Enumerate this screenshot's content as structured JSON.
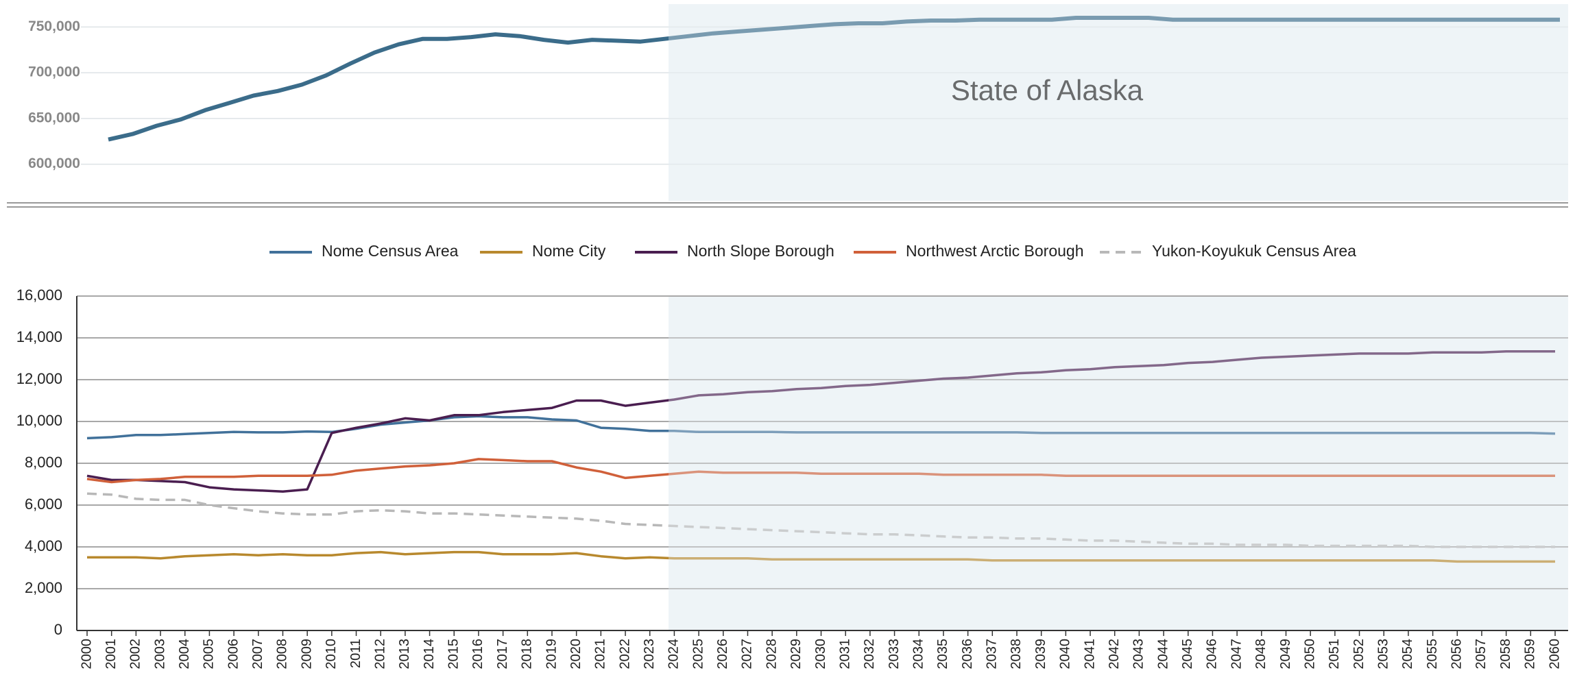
{
  "chart_data": [
    {
      "type": "line",
      "annotation": "State of Alaska",
      "series": [
        {
          "color": "#3b6c8a",
          "values": [
            627000,
            633000,
            642000,
            649000,
            659000,
            667000,
            675000,
            680000,
            687000,
            697000,
            710000,
            722000,
            731000,
            737000,
            737000,
            739000,
            742000,
            740000,
            736000,
            733000,
            736000,
            735000,
            734000,
            737000,
            740000,
            743000,
            745000,
            747000,
            749000,
            751000,
            753000,
            754000,
            754000,
            756000,
            757000,
            757000,
            758000,
            758000,
            758000,
            758000,
            760000,
            760000,
            760000,
            760000,
            758000,
            758000,
            758000,
            758000,
            758000,
            758000,
            758000,
            758000,
            758000,
            758000,
            758000,
            758000,
            758000,
            758000,
            758000,
            758000,
            758000
          ]
        }
      ],
      "ylim": [
        560000,
        775000
      ],
      "yticks": [
        {
          "value": 600000,
          "label": "600,000"
        },
        {
          "value": 650000,
          "label": "650,000"
        },
        {
          "value": 700000,
          "label": "700,000"
        },
        {
          "value": 750000,
          "label": "750,000"
        }
      ],
      "grid": true
    },
    {
      "type": "line",
      "categories": [
        "2000",
        "2001",
        "2002",
        "2003",
        "2004",
        "2005",
        "2006",
        "2007",
        "2008",
        "2009",
        "2010",
        "2011",
        "2012",
        "2013",
        "2014",
        "2015",
        "2016",
        "2017",
        "2018",
        "2019",
        "2020",
        "2021",
        "2022",
        "2023",
        "2024",
        "2025",
        "2026",
        "2027",
        "2028",
        "2029",
        "2030",
        "2031",
        "2032",
        "2033",
        "2034",
        "2035",
        "2036",
        "2037",
        "2038",
        "2039",
        "2040",
        "2041",
        "2042",
        "2043",
        "2044",
        "2045",
        "2046",
        "2047",
        "2048",
        "2049",
        "2050",
        "2051",
        "2052",
        "2053",
        "2054",
        "2055",
        "2056",
        "2057",
        "2058",
        "2059",
        "2060"
      ],
      "series": [
        {
          "name": "Nome Census Area",
          "color": "#41719a",
          "values": [
            9200,
            9250,
            9350,
            9350,
            9400,
            9450,
            9500,
            9480,
            9480,
            9520,
            9500,
            9650,
            9850,
            9950,
            10050,
            10200,
            10250,
            10200,
            10200,
            10100,
            10050,
            9700,
            9650,
            9550,
            9550,
            9500,
            9500,
            9500,
            9500,
            9480,
            9480,
            9480,
            9480,
            9480,
            9480,
            9480,
            9480,
            9480,
            9480,
            9450,
            9450,
            9450,
            9450,
            9450,
            9450,
            9450,
            9450,
            9450,
            9450,
            9450,
            9450,
            9450,
            9450,
            9450,
            9450,
            9450,
            9450,
            9450,
            9450,
            9450,
            9420
          ]
        },
        {
          "name": "Nome City",
          "color": "#b8892e",
          "values": [
            3500,
            3500,
            3500,
            3450,
            3550,
            3600,
            3650,
            3600,
            3650,
            3600,
            3600,
            3700,
            3750,
            3650,
            3700,
            3750,
            3750,
            3650,
            3650,
            3650,
            3700,
            3550,
            3450,
            3500,
            3450,
            3450,
            3450,
            3450,
            3400,
            3400,
            3400,
            3400,
            3400,
            3400,
            3400,
            3400,
            3400,
            3350,
            3350,
            3350,
            3350,
            3350,
            3350,
            3350,
            3350,
            3350,
            3350,
            3350,
            3350,
            3350,
            3350,
            3350,
            3350,
            3350,
            3350,
            3350,
            3300,
            3300,
            3300,
            3300,
            3300
          ]
        },
        {
          "name": "North Slope Borough",
          "color": "#4a1e50",
          "values": [
            7400,
            7200,
            7200,
            7150,
            7100,
            6850,
            6750,
            6700,
            6650,
            6750,
            9450,
            9700,
            9900,
            10150,
            10050,
            10300,
            10300,
            10450,
            10550,
            10650,
            11000,
            11000,
            10750,
            10900,
            11050,
            11250,
            11300,
            11400,
            11450,
            11550,
            11600,
            11700,
            11750,
            11850,
            11950,
            12050,
            12100,
            12200,
            12300,
            12350,
            12450,
            12500,
            12600,
            12650,
            12700,
            12800,
            12850,
            12950,
            13050,
            13100,
            13150,
            13200,
            13250,
            13250,
            13250,
            13300,
            13300,
            13300,
            13350,
            13350,
            13350
          ]
        },
        {
          "name": "Northwest Arctic Borough",
          "color": "#d0603a",
          "values": [
            7250,
            7100,
            7200,
            7250,
            7350,
            7350,
            7350,
            7400,
            7400,
            7400,
            7450,
            7650,
            7750,
            7850,
            7900,
            8000,
            8200,
            8150,
            8100,
            8100,
            7800,
            7600,
            7300,
            7400,
            7500,
            7600,
            7550,
            7550,
            7550,
            7550,
            7500,
            7500,
            7500,
            7500,
            7500,
            7450,
            7450,
            7450,
            7450,
            7450,
            7400,
            7400,
            7400,
            7400,
            7400,
            7400,
            7400,
            7400,
            7400,
            7400,
            7400,
            7400,
            7400,
            7400,
            7400,
            7400,
            7400,
            7400,
            7400,
            7400,
            7400
          ]
        },
        {
          "name": "Yukon-Koyukuk Census Area",
          "color": "#b8b8b8",
          "dashed": true,
          "values": [
            6550,
            6500,
            6300,
            6250,
            6250,
            6000,
            5850,
            5700,
            5600,
            5550,
            5550,
            5700,
            5750,
            5700,
            5600,
            5600,
            5550,
            5500,
            5450,
            5400,
            5350,
            5250,
            5100,
            5050,
            5000,
            4950,
            4900,
            4850,
            4800,
            4750,
            4700,
            4650,
            4600,
            4600,
            4550,
            4500,
            4450,
            4450,
            4400,
            4400,
            4350,
            4300,
            4300,
            4250,
            4200,
            4150,
            4150,
            4100,
            4100,
            4100,
            4050,
            4050,
            4050,
            4050,
            4050,
            4000,
            4000,
            4000,
            4000,
            4000,
            4000
          ]
        }
      ],
      "ylim": [
        0,
        16000
      ],
      "yticks": [
        0,
        {
          "value": 2000,
          "label": "2,000"
        },
        {
          "value": 4000,
          "label": "4,000"
        },
        {
          "value": 6000,
          "label": "6,000"
        },
        {
          "value": 8000,
          "label": "8,000"
        },
        {
          "value": 10000,
          "label": "10,000"
        },
        {
          "value": 12000,
          "label": "12,000"
        },
        {
          "value": 14000,
          "label": "14,000"
        },
        {
          "value": 16000,
          "label": "16,000"
        }
      ],
      "grid": true,
      "legend": "top"
    }
  ]
}
